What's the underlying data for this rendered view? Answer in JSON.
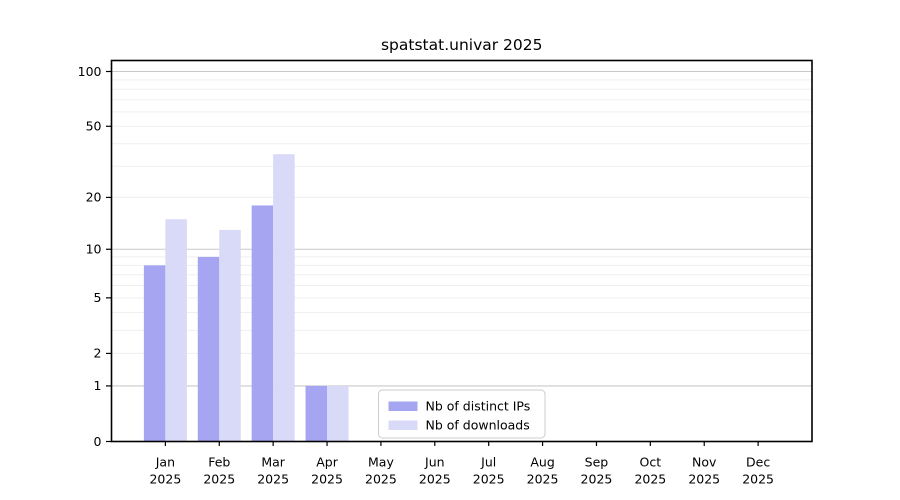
{
  "chart_data": {
    "type": "bar",
    "title": "spatstat.univar 2025",
    "categories": [
      "Jan",
      "Feb",
      "Mar",
      "Apr",
      "May",
      "Jun",
      "Jul",
      "Aug",
      "Sep",
      "Oct",
      "Nov",
      "Dec"
    ],
    "year_label": "2025",
    "series": [
      {
        "name": "Nb of distinct IPs",
        "color": "#a5a5f1",
        "values": [
          8,
          9,
          18,
          1,
          0,
          0,
          0,
          0,
          0,
          0,
          0,
          0
        ]
      },
      {
        "name": "Nb of downloads",
        "color": "#d9d9f8",
        "values": [
          15,
          13,
          35,
          1,
          0,
          0,
          0,
          0,
          0,
          0,
          0,
          0
        ]
      }
    ],
    "yscale": "log1p",
    "ylim": [
      0,
      115
    ],
    "ytick_labels": [
      0,
      1,
      2,
      5,
      10,
      20,
      50,
      100
    ],
    "grid": {
      "major_values": [
        1,
        10,
        100
      ],
      "minor_values": [
        2,
        3,
        4,
        5,
        6,
        7,
        8,
        9,
        20,
        30,
        40,
        50,
        60,
        70,
        80,
        90
      ],
      "major_color": "#c9c9c9",
      "minor_color": "#efefef"
    },
    "legend": {
      "position": "lower center",
      "border_color": "#cccccc",
      "background": "#ffffff"
    },
    "axis_color": "#000000",
    "plot_background": "#ffffff"
  }
}
